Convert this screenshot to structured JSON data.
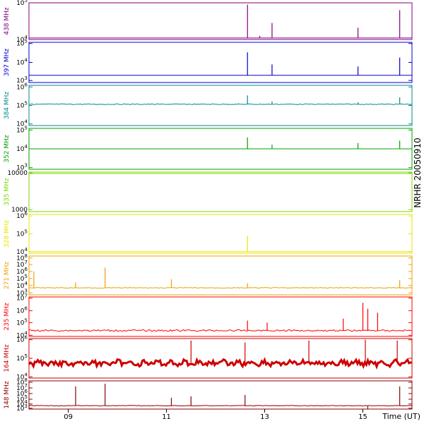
{
  "chart_data": {
    "type": "line",
    "title": "",
    "side_label": "NRHR 20050910",
    "xlabel": "Time (UT)",
    "x_range_hours": [
      8.2,
      16.0
    ],
    "x_ticks": [
      {
        "h": 9,
        "label": "09"
      },
      {
        "h": 11,
        "label": "11"
      },
      {
        "h": 13,
        "label": "13"
      },
      {
        "h": 15,
        "label": "15"
      }
    ],
    "panels": [
      {
        "name": "438 MHz",
        "color": "#800080",
        "yscale": "log",
        "yticks": [
          {
            "label": "10",
            "exp": "5",
            "pos": 0
          },
          {
            "label": "10",
            "exp": "4",
            "pos": 1
          }
        ],
        "base": 0.96,
        "noise": 0.0,
        "spikes": [
          {
            "t": 12.65,
            "v": 0.05
          },
          {
            "t": 12.9,
            "v": 0.9
          },
          {
            "t": 13.15,
            "v": 0.55
          },
          {
            "t": 14.9,
            "v": 0.68
          },
          {
            "t": 15.75,
            "v": 0.2
          }
        ]
      },
      {
        "name": "397 MHz",
        "color": "#0000cc",
        "yscale": "log",
        "yticks": [
          {
            "label": "10",
            "exp": "5",
            "pos": 0.03
          },
          {
            "label": "10",
            "exp": "4",
            "pos": 0.5
          },
          {
            "label": "10",
            "exp": "3",
            "pos": 0.95
          }
        ],
        "base": 0.82,
        "noise": 0.0,
        "spikes": [
          {
            "t": 12.65,
            "v": 0.25
          },
          {
            "t": 13.15,
            "v": 0.55
          },
          {
            "t": 14.9,
            "v": 0.6
          },
          {
            "t": 15.75,
            "v": 0.38
          }
        ]
      },
      {
        "name": "384 MHz",
        "color": "#008b8b",
        "yscale": "log",
        "yticks": [
          {
            "label": "10",
            "exp": "6",
            "pos": 0.04
          },
          {
            "label": "10",
            "exp": "5",
            "pos": 0.5
          },
          {
            "label": "10",
            "exp": "4",
            "pos": 0.96
          }
        ],
        "base": 0.47,
        "noise": 0.02,
        "spikes": [
          {
            "t": 12.65,
            "v": 0.25
          },
          {
            "t": 13.15,
            "v": 0.4
          },
          {
            "t": 14.9,
            "v": 0.42
          },
          {
            "t": 15.75,
            "v": 0.3
          }
        ]
      },
      {
        "name": "352 MHz",
        "color": "#00a000",
        "yscale": "log",
        "yticks": [
          {
            "label": "10",
            "exp": "5",
            "pos": 0.04
          },
          {
            "label": "10",
            "exp": "4",
            "pos": 0.5
          },
          {
            "label": "10",
            "exp": "3",
            "pos": 0.96
          }
        ],
        "base": 0.5,
        "noise": 0.0,
        "spikes": [
          {
            "t": 12.65,
            "v": 0.22
          },
          {
            "t": 13.15,
            "v": 0.4
          },
          {
            "t": 14.9,
            "v": 0.36
          },
          {
            "t": 15.75,
            "v": 0.3
          }
        ]
      },
      {
        "name": "335 MHz",
        "color": "#7ad700",
        "yscale": "log",
        "yticks": [
          {
            "label": "10000",
            "exp": "",
            "pos": 0.02
          },
          {
            "label": "1000",
            "exp": "",
            "pos": 0.95
          }
        ],
        "base": 0.0,
        "noise": 0.0,
        "spikes": []
      },
      {
        "name": "328 MHz",
        "color": "#e6e600",
        "yscale": "log",
        "yticks": [
          {
            "label": "10",
            "exp": "6",
            "pos": 0.04
          },
          {
            "label": "10",
            "exp": "5",
            "pos": 0.5
          },
          {
            "label": "10",
            "exp": "4",
            "pos": 0.96
          }
        ],
        "base": 0.96,
        "noise": 0.0,
        "spikes": [
          {
            "t": 12.65,
            "v": 0.55
          }
        ]
      },
      {
        "name": "271 MHz",
        "color": "#f0a000",
        "yscale": "log",
        "yticks": [
          {
            "label": "10",
            "exp": "8",
            "pos": 0.05
          },
          {
            "label": "10",
            "exp": "7",
            "pos": 0.22
          },
          {
            "label": "10",
            "exp": "6",
            "pos": 0.4
          },
          {
            "label": "10",
            "exp": "5",
            "pos": 0.58
          },
          {
            "label": "10",
            "exp": "4",
            "pos": 0.76
          },
          {
            "label": "10",
            "exp": "3",
            "pos": 0.95
          }
        ],
        "base": 0.82,
        "noise": 0.02,
        "spikes": [
          {
            "t": 8.3,
            "v": 0.4
          },
          {
            "t": 9.15,
            "v": 0.68
          },
          {
            "t": 9.75,
            "v": 0.3
          },
          {
            "t": 11.1,
            "v": 0.6
          },
          {
            "t": 12.65,
            "v": 0.7
          },
          {
            "t": 15.75,
            "v": 0.62
          }
        ]
      },
      {
        "name": "235 MHz",
        "color": "#ff0000",
        "yscale": "log",
        "yticks": [
          {
            "label": "10",
            "exp": "7",
            "pos": 0.03
          },
          {
            "label": "10",
            "exp": "6",
            "pos": 0.35
          },
          {
            "label": "10",
            "exp": "5",
            "pos": 0.65
          },
          {
            "label": "10",
            "exp": "4",
            "pos": 0.97
          }
        ],
        "base": 0.85,
        "noise": 0.04,
        "spikes": [
          {
            "t": 12.65,
            "v": 0.6
          },
          {
            "t": 13.05,
            "v": 0.65
          },
          {
            "t": 14.6,
            "v": 0.55
          },
          {
            "t": 15.0,
            "v": 0.15
          },
          {
            "t": 15.1,
            "v": 0.3
          },
          {
            "t": 15.3,
            "v": 0.4
          }
        ]
      },
      {
        "name": "164 MHz",
        "color": "#cc0000",
        "yscale": "log",
        "yticks": [
          {
            "label": "10",
            "exp": "6",
            "pos": 0.03
          },
          {
            "label": "10",
            "exp": "5",
            "pos": 0.5
          },
          {
            "label": "10",
            "exp": "4",
            "pos": 0.97
          }
        ],
        "base": 0.62,
        "noise": 0.12,
        "spikes": [
          {
            "t": 11.5,
            "v": 0.05
          },
          {
            "t": 12.6,
            "v": 0.1
          },
          {
            "t": 13.9,
            "v": 0.05
          },
          {
            "t": 15.05,
            "v": 0.03
          },
          {
            "t": 15.7,
            "v": 0.05
          }
        ]
      },
      {
        "name": "148 MHz",
        "color": "#8b0000",
        "yscale": "log",
        "yticks": [
          {
            "label": "10",
            "exp": "8",
            "pos": 0.05
          },
          {
            "label": "10",
            "exp": "7",
            "pos": 0.25
          },
          {
            "label": "10",
            "exp": "6",
            "pos": 0.45
          },
          {
            "label": "10",
            "exp": "5",
            "pos": 0.65
          },
          {
            "label": "10",
            "exp": "4",
            "pos": 0.82
          },
          {
            "label": "10",
            "exp": "3",
            "pos": 0.97
          }
        ],
        "base": 0.88,
        "noise": 0.02,
        "spikes": [
          {
            "t": 9.15,
            "v": 0.2
          },
          {
            "t": 9.75,
            "v": 0.1
          },
          {
            "t": 11.1,
            "v": 0.6
          },
          {
            "t": 11.5,
            "v": 0.55
          },
          {
            "t": 12.6,
            "v": 0.5
          },
          {
            "t": 15.1,
            "v": 1.0
          },
          {
            "t": 15.75,
            "v": 0.2
          }
        ]
      }
    ]
  }
}
